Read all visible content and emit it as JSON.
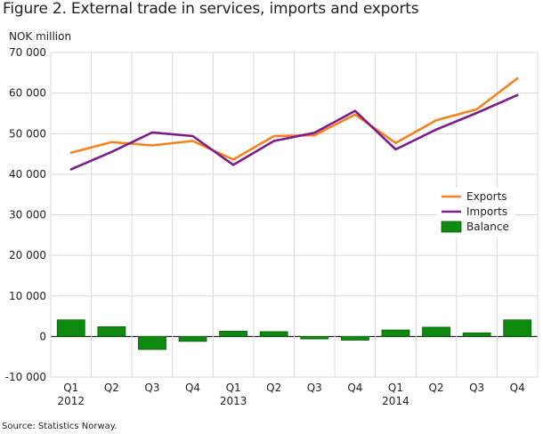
{
  "title": "Figure 2. External trade in services, imports and exports",
  "source": "Source: Statistics Norway.",
  "colors": {
    "exports": "#f5821f",
    "imports": "#7b1d8a",
    "balance": "#0f8a10",
    "balance_border": "#0b5e0b",
    "grid": "#d9d9d9"
  },
  "chart_data": {
    "type": "line",
    "ylabel": "NOK million",
    "ylim": [
      -10000,
      70000
    ],
    "yticks": [
      -10000,
      0,
      10000,
      20000,
      30000,
      40000,
      50000,
      60000,
      70000
    ],
    "ytick_labels": [
      "-10 000",
      "0",
      "10 000",
      "20 000",
      "30 000",
      "40 000",
      "50 000",
      "60 000",
      "70 000"
    ],
    "categories": [
      "Q1",
      "Q2",
      "Q3",
      "Q4",
      "Q1",
      "Q2",
      "Q3",
      "Q4",
      "Q1",
      "Q2",
      "Q3",
      "Q4"
    ],
    "year_labels": [
      {
        "index": 0,
        "label": "2012"
      },
      {
        "index": 4,
        "label": "2013"
      },
      {
        "index": 8,
        "label": "2014"
      }
    ],
    "grid": true,
    "legend_position": "right",
    "series": [
      {
        "name": "Exports",
        "kind": "line",
        "color_key": "exports",
        "values": [
          45300,
          47900,
          47100,
          48200,
          43600,
          49400,
          49600,
          54700,
          47700,
          53300,
          56000,
          63600
        ]
      },
      {
        "name": "Imports",
        "kind": "line",
        "color_key": "imports",
        "values": [
          41200,
          45500,
          50300,
          49400,
          42300,
          48200,
          50200,
          55600,
          46100,
          51000,
          55100,
          59500
        ]
      },
      {
        "name": "Balance",
        "kind": "bar",
        "color_key": "balance",
        "values": [
          4100,
          2400,
          -3200,
          -1200,
          1300,
          1200,
          -600,
          -900,
          1600,
          2300,
          900,
          4100
        ]
      }
    ]
  }
}
